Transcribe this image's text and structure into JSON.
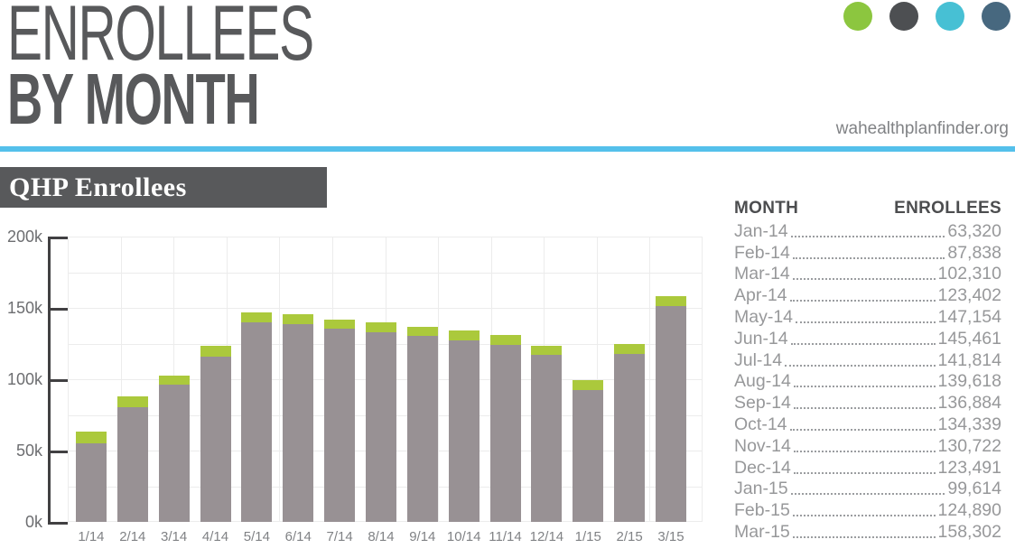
{
  "header": {
    "title_line1": "ENROLLEES",
    "title_line2": "BY MONTH",
    "website": "wahealthplanfinder.org",
    "brand_dots": [
      {
        "name": "green",
        "color": "#8cc63f"
      },
      {
        "name": "dark-gray",
        "color": "#4d4f52"
      },
      {
        "name": "cyan",
        "color": "#47c0d4"
      },
      {
        "name": "slate-blue",
        "color": "#47687f"
      }
    ]
  },
  "section": {
    "title": "QHP Enrollees"
  },
  "chart_data": {
    "type": "bar",
    "stacked": true,
    "title": "QHP Enrollees",
    "categories": [
      "1/14",
      "2/14",
      "3/14",
      "4/14",
      "5/14",
      "6/14",
      "7/14",
      "8/14",
      "9/14",
      "10/14",
      "11/14",
      "12/14",
      "1/15",
      "2/15",
      "3/15"
    ],
    "totals": [
      63320,
      87838,
      102310,
      123402,
      147154,
      145461,
      141814,
      139618,
      136884,
      134339,
      130722,
      123491,
      99614,
      124890,
      158302
    ],
    "series": [
      {
        "name": "base segment (gray)",
        "color": "#989194",
        "values": [
          55320,
          80338,
          96310,
          115802,
          140154,
          138461,
          135214,
          132618,
          130384,
          127339,
          124222,
          116891,
          92614,
          117890,
          151302
        ]
      },
      {
        "name": "top segment (green, estimated from pixels)",
        "color": "#abc93c",
        "values": [
          8000,
          7500,
          6000,
          7600,
          7000,
          7000,
          6600,
          7000,
          6500,
          7000,
          6500,
          6600,
          7000,
          7000,
          7000
        ]
      }
    ],
    "y_ticks": [
      "200k",
      "150k",
      "100k",
      "50k",
      "0k"
    ],
    "ylim": [
      0,
      200000
    ],
    "grid": true,
    "legend": "none",
    "xlabel": "",
    "ylabel": ""
  },
  "table": {
    "headers": [
      "MONTH",
      "ENROLLEES"
    ],
    "rows": [
      [
        "Jan-14",
        "63,320"
      ],
      [
        "Feb-14",
        "87,838"
      ],
      [
        "Mar-14",
        "102,310"
      ],
      [
        "Apr-14",
        "123,402"
      ],
      [
        "May-14",
        "147,154"
      ],
      [
        "Jun-14",
        "145,461"
      ],
      [
        "Jul-14",
        "141,814"
      ],
      [
        "Aug-14",
        "139,618"
      ],
      [
        "Sep-14",
        "136,884"
      ],
      [
        "Oct-14",
        "134,339"
      ],
      [
        "Nov-14",
        "130,722"
      ],
      [
        "Dec-14",
        "123,491"
      ],
      [
        "Jan-15",
        "99,614"
      ],
      [
        "Feb-15",
        "124,890"
      ],
      [
        "Mar-15",
        "158,302"
      ]
    ]
  },
  "colors": {
    "title_gray": "#58595b",
    "divider_blue": "#54c0eb",
    "badge_background": "#58595b",
    "bar_gray": "#989194",
    "bar_green": "#abc93c",
    "axis_dark": "#414042",
    "gridline": "#ececec",
    "y_tick_label": "#6d6e71",
    "x_tick_label": "#808285",
    "table_text": "#97989a",
    "table_header": "#4c4d4f"
  }
}
